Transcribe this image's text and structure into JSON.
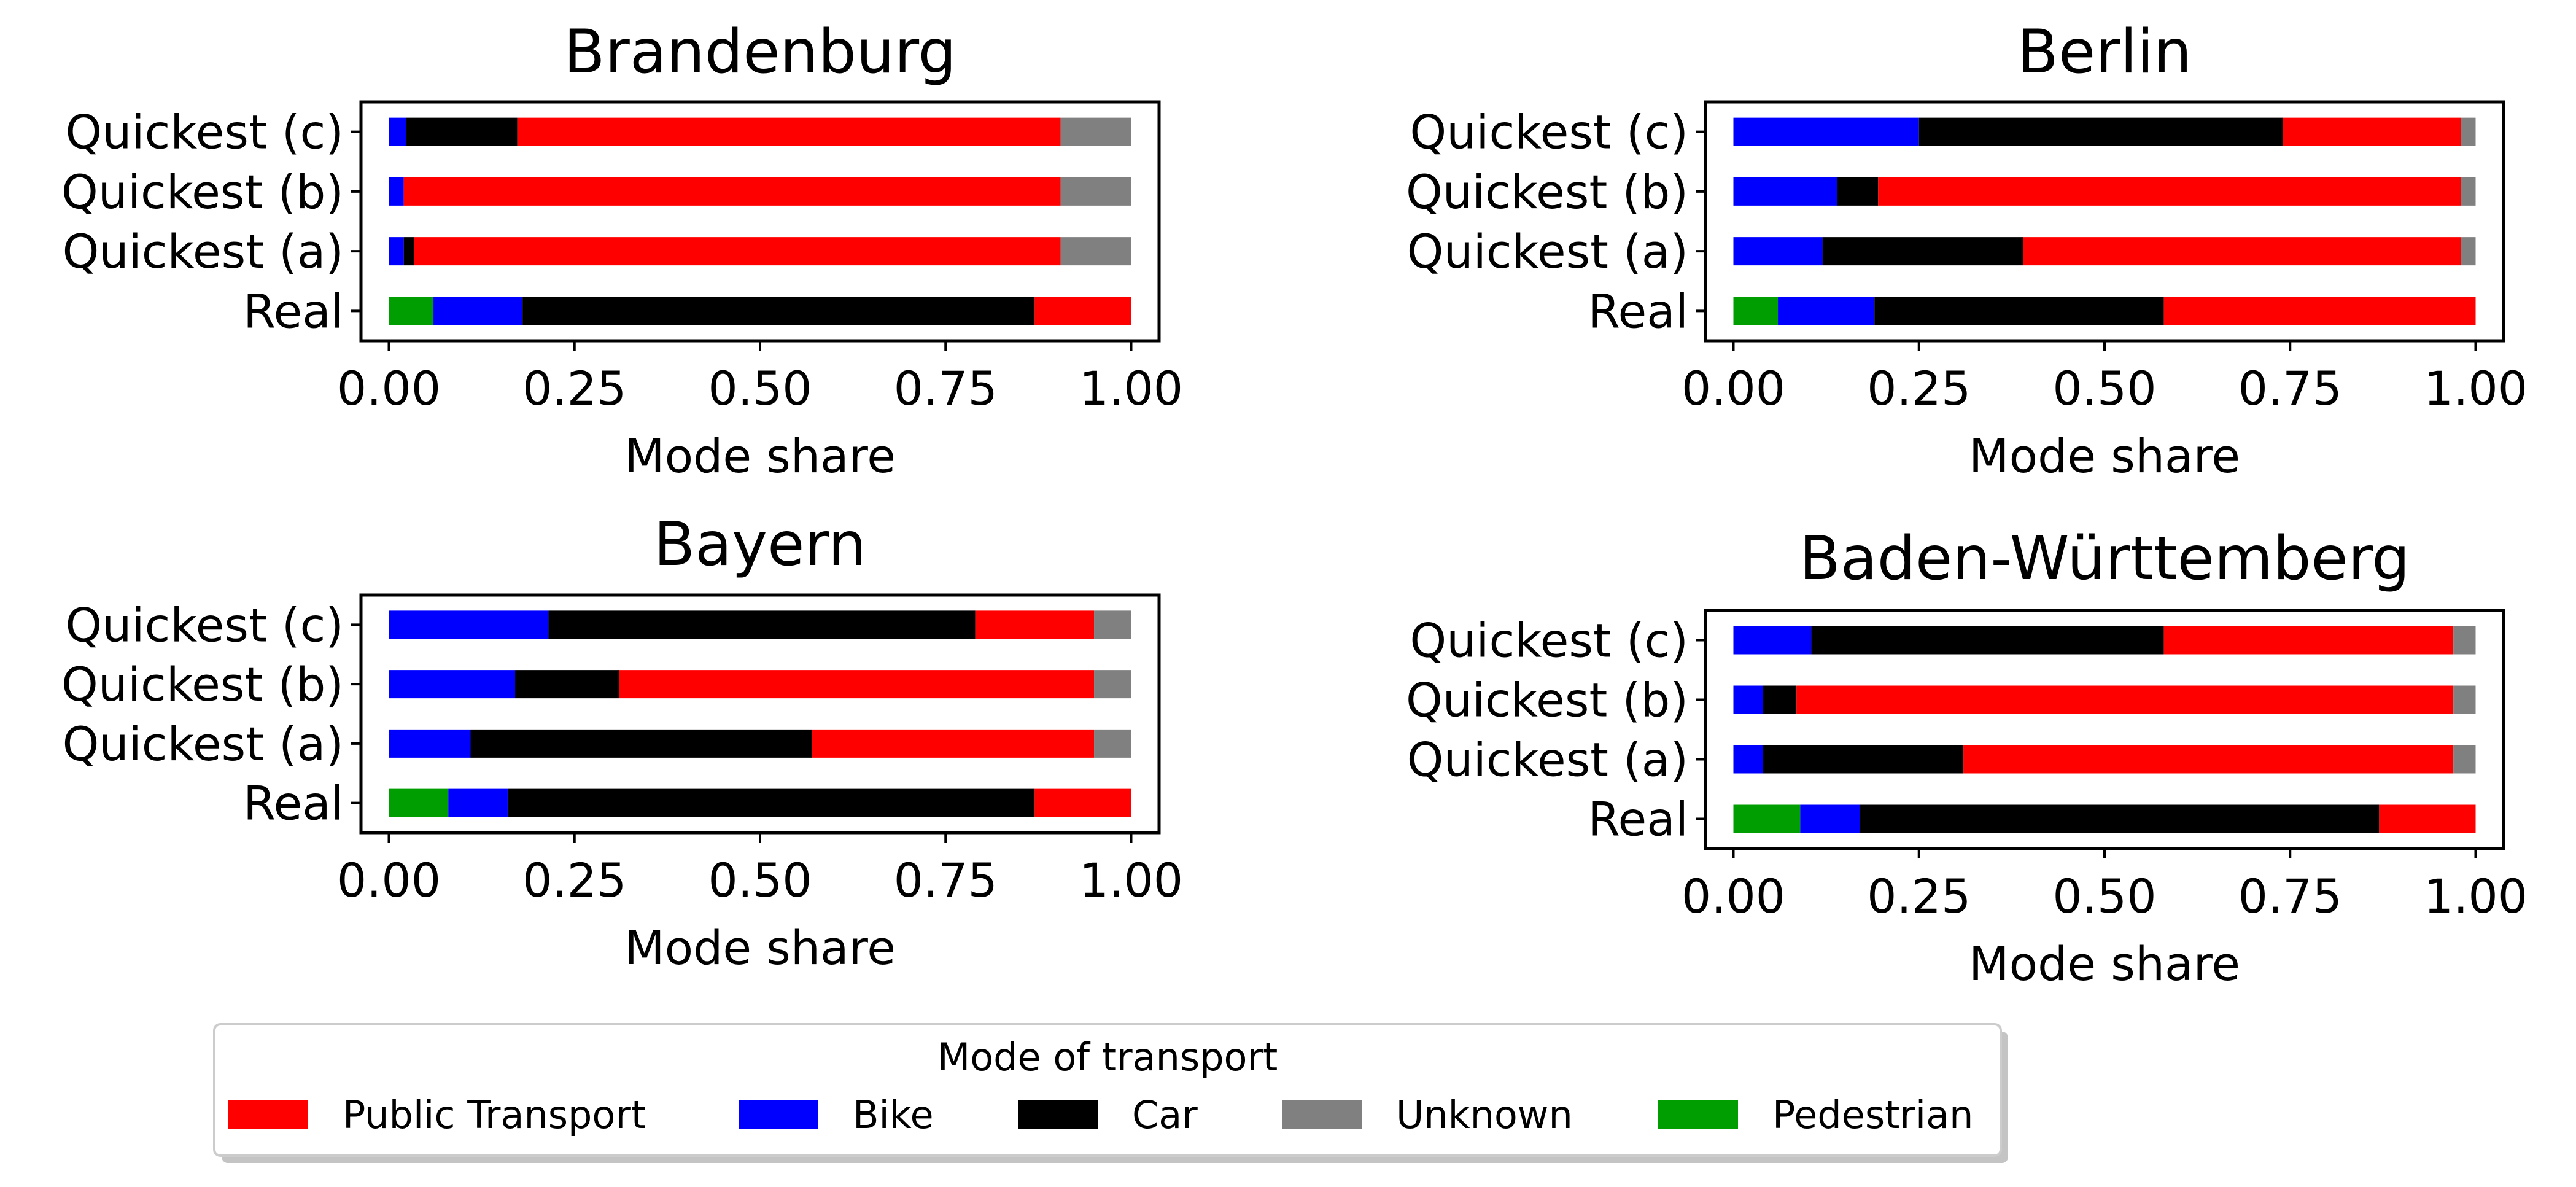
{
  "chart_data": [
    {
      "type": "bar",
      "orientation": "horizontal",
      "stacked": true,
      "title": "Brandenburg",
      "categories": [
        "Real",
        "Quickest (a)",
        "Quickest (b)",
        "Quickest (c)"
      ],
      "xlabel": "Mode share",
      "xlim": [
        0,
        1
      ],
      "xticks": [
        "0.00",
        "0.25",
        "0.50",
        "0.75",
        "1.00"
      ],
      "series": [
        {
          "name": "Pedestrian",
          "values": [
            0.06,
            0,
            0,
            0
          ]
        },
        {
          "name": "Bike",
          "values": [
            0.12,
            0.02,
            0.02,
            0.023
          ]
        },
        {
          "name": "Car",
          "values": [
            0.69,
            0.014,
            0,
            0.15
          ]
        },
        {
          "name": "Public Transport",
          "values": [
            0.13,
            0.871,
            0.885,
            0.732
          ]
        },
        {
          "name": "Unknown",
          "values": [
            0,
            0.095,
            0.095,
            0.095
          ]
        }
      ]
    },
    {
      "type": "bar",
      "orientation": "horizontal",
      "stacked": true,
      "title": "Berlin",
      "categories": [
        "Real",
        "Quickest (a)",
        "Quickest (b)",
        "Quickest (c)"
      ],
      "xlabel": "Mode share",
      "xlim": [
        0,
        1
      ],
      "xticks": [
        "0.00",
        "0.25",
        "0.50",
        "0.75",
        "1.00"
      ],
      "series": [
        {
          "name": "Pedestrian",
          "values": [
            0.06,
            0,
            0,
            0
          ]
        },
        {
          "name": "Bike",
          "values": [
            0.13,
            0.12,
            0.14,
            0.25
          ]
        },
        {
          "name": "Car",
          "values": [
            0.39,
            0.27,
            0.055,
            0.49
          ]
        },
        {
          "name": "Public Transport",
          "values": [
            0.42,
            0.59,
            0.785,
            0.24
          ]
        },
        {
          "name": "Unknown",
          "values": [
            0,
            0.02,
            0.02,
            0.02
          ]
        }
      ]
    },
    {
      "type": "bar",
      "orientation": "horizontal",
      "stacked": true,
      "title": "Bayern",
      "categories": [
        "Real",
        "Quickest (a)",
        "Quickest (b)",
        "Quickest (c)"
      ],
      "xlabel": "Mode share",
      "xlim": [
        0,
        1
      ],
      "xticks": [
        "0.00",
        "0.25",
        "0.50",
        "0.75",
        "1.00"
      ],
      "series": [
        {
          "name": "Pedestrian",
          "values": [
            0.08,
            0,
            0,
            0
          ]
        },
        {
          "name": "Bike",
          "values": [
            0.08,
            0.11,
            0.17,
            0.215
          ]
        },
        {
          "name": "Car",
          "values": [
            0.71,
            0.46,
            0.14,
            0.575
          ]
        },
        {
          "name": "Public Transport",
          "values": [
            0.13,
            0.38,
            0.64,
            0.16
          ]
        },
        {
          "name": "Unknown",
          "values": [
            0,
            0.05,
            0.05,
            0.05
          ]
        }
      ]
    },
    {
      "type": "bar",
      "orientation": "horizontal",
      "stacked": true,
      "title": "Baden-Württemberg",
      "categories": [
        "Real",
        "Quickest (a)",
        "Quickest (b)",
        "Quickest (c)"
      ],
      "xlabel": "Mode share",
      "xlim": [
        0,
        1
      ],
      "xticks": [
        "0.00",
        "0.25",
        "0.50",
        "0.75",
        "1.00"
      ],
      "series": [
        {
          "name": "Pedestrian",
          "values": [
            0.09,
            0,
            0,
            0
          ]
        },
        {
          "name": "Bike",
          "values": [
            0.08,
            0.04,
            0.04,
            0.105
          ]
        },
        {
          "name": "Car",
          "values": [
            0.7,
            0.27,
            0.045,
            0.475
          ]
        },
        {
          "name": "Public Transport",
          "values": [
            0.13,
            0.66,
            0.885,
            0.39
          ]
        },
        {
          "name": "Unknown",
          "values": [
            0,
            0.03,
            0.03,
            0.03
          ]
        }
      ]
    }
  ],
  "legend": {
    "title": "Mode of transport",
    "entries": [
      "Public Transport",
      "Bike",
      "Car",
      "Unknown",
      "Pedestrian"
    ]
  },
  "colors": {
    "Public Transport": "#ff0000",
    "Bike": "#0000ff",
    "Car": "#000000",
    "Unknown": "#808080",
    "Pedestrian": "#009e00"
  }
}
